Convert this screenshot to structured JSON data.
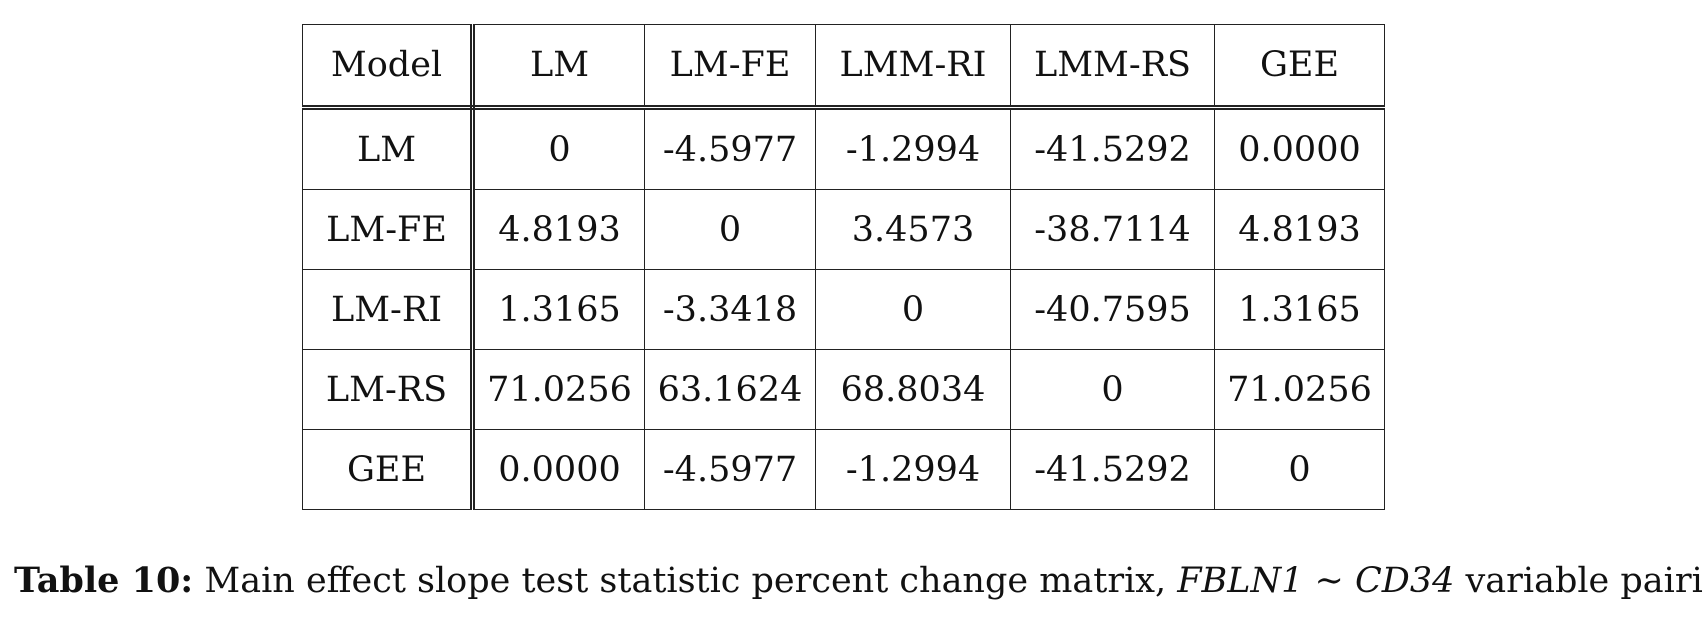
{
  "table": {
    "header": [
      "Model",
      "LM",
      "LM-FE",
      "LMM-RI",
      "LMM-RS",
      "GEE"
    ],
    "rows": [
      {
        "label": "LM",
        "cells": [
          "0",
          "-4.5977",
          "-1.2994",
          "-41.5292",
          "0.0000"
        ]
      },
      {
        "label": "LM-FE",
        "cells": [
          "4.8193",
          "0",
          "3.4573",
          "-38.7114",
          "4.8193"
        ]
      },
      {
        "label": "LM-RI",
        "cells": [
          "1.3165",
          "-3.3418",
          "0",
          "-40.7595",
          "1.3165"
        ]
      },
      {
        "label": "LM-RS",
        "cells": [
          "71.0256",
          "63.1624",
          "68.8034",
          "0",
          "71.0256"
        ]
      },
      {
        "label": "GEE",
        "cells": [
          "0.0000",
          "-4.5977",
          "-1.2994",
          "-41.5292",
          "0"
        ]
      }
    ]
  },
  "caption": {
    "label": "Table 10:",
    "text": "Main effect slope test statistic percent change matrix,",
    "math": "FBLN1 ∼ CD34",
    "suffix": "variable pairing"
  }
}
